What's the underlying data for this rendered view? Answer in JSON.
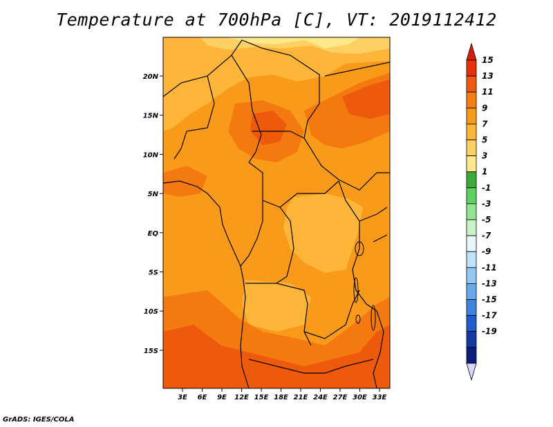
{
  "title": "Temperature at 700hPa [C], VT: 2019112412",
  "credit": "GrADS: IGES/COLA",
  "variable": "Temperature",
  "level": "700hPa",
  "units": "C",
  "valid_time": "2019112412",
  "map": {
    "lon_labels": [
      "3E",
      "6E",
      "9E",
      "12E",
      "15E",
      "18E",
      "21E",
      "24E",
      "27E",
      "30E",
      "33E"
    ],
    "lat_labels": [
      "20N",
      "15N",
      "10N",
      "5N",
      "EQ",
      "5S",
      "10S",
      "15S"
    ],
    "field_colors": {
      "band_3_5": "#fee98a",
      "band_5_7": "#fdd064",
      "band_7_9": "#fdb53a",
      "band_9_11": "#fa9a1a",
      "band_11_13": "#f47a10",
      "band_13_15": "#ee5a0c"
    }
  },
  "colorbar": {
    "labels": [
      "15",
      "13",
      "11",
      "9",
      "7",
      "5",
      "3",
      "1",
      "-1",
      "-3",
      "-5",
      "-7",
      "-9",
      "-11",
      "-13",
      "-15",
      "-17",
      "-19"
    ],
    "colors": [
      "#e8300c",
      "#f15a0e",
      "#f67e12",
      "#fa9b18",
      "#fdb53a",
      "#fdd064",
      "#fee98a",
      "#3aaa3a",
      "#5fd15f",
      "#93e493",
      "#c9f2c9",
      "#e8f5fb",
      "#bfe3f8",
      "#93c8f2",
      "#6aa9ec",
      "#3f83e0",
      "#1f5ccf",
      "#123aa7",
      "#0c1f7a"
    ],
    "top_arrow_color": "#d81e08",
    "bottom_arrow_color": "#d8d8ff"
  }
}
